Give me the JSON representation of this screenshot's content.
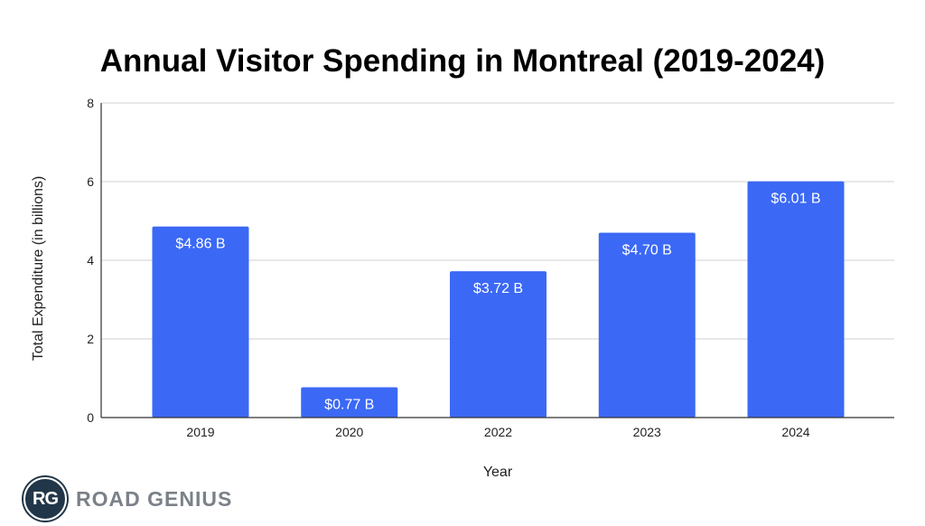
{
  "chart_data": {
    "type": "bar",
    "title": "Annual Visitor Spending in Montreal (2019-2024)",
    "xlabel": "Year",
    "ylabel": "Total Expenditure (in billions)",
    "categories": [
      "2019",
      "2020",
      "2022",
      "2023",
      "2024"
    ],
    "values": [
      4.86,
      0.77,
      3.72,
      4.7,
      6.01
    ],
    "data_labels": [
      "$4.86 B",
      "$0.77 B",
      "$3.72 B",
      "$4.70 B",
      "$6.01 B"
    ],
    "ylim": [
      0,
      8
    ],
    "yticks": [
      0,
      2,
      4,
      6,
      8
    ],
    "grid": true,
    "bar_color": "#3b68f5"
  },
  "logo": {
    "initials": "RG",
    "name": "ROAD GENIUS"
  }
}
